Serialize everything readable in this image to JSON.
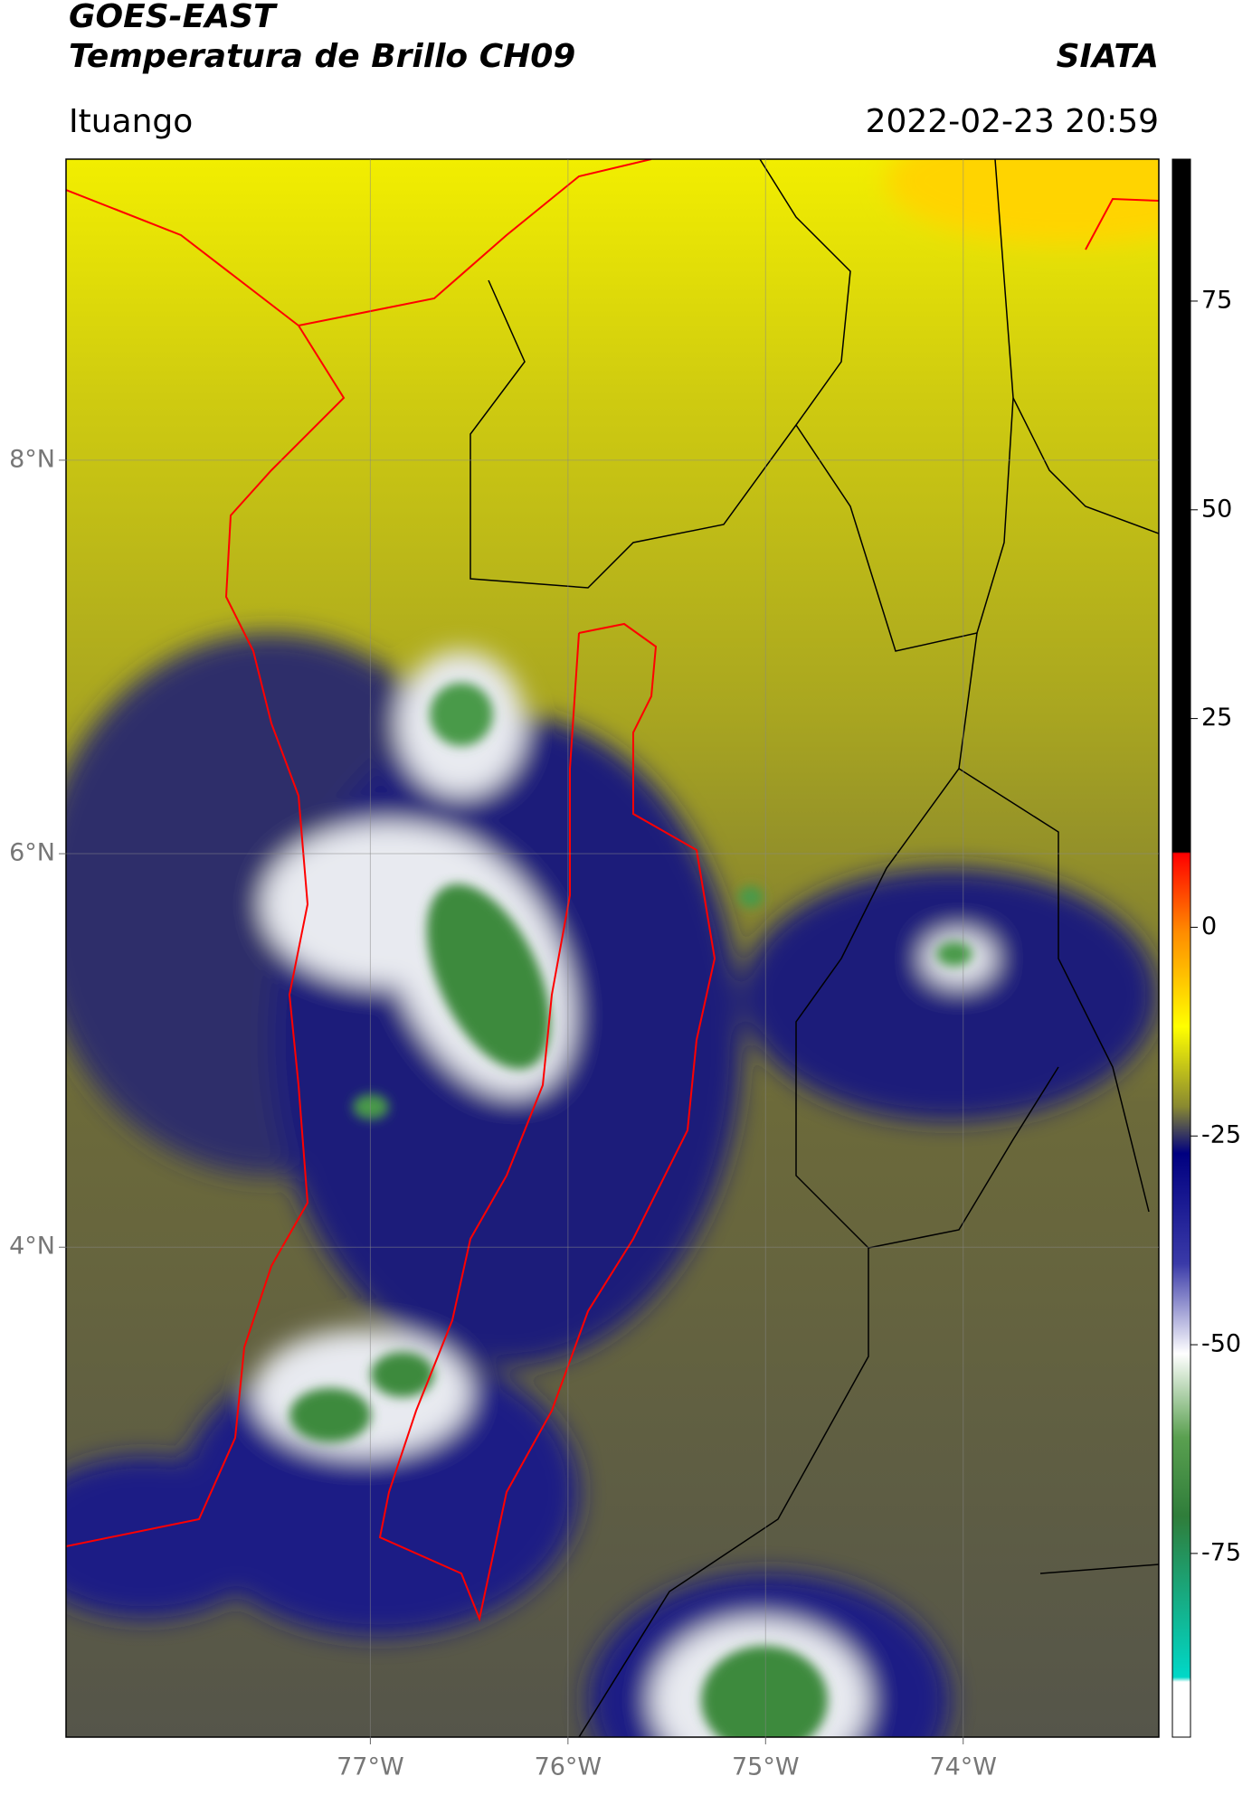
{
  "header": {
    "title": "GOES-EAST",
    "subtitle": "Temperatura de Brillo CH09",
    "brand": "SIATA",
    "location": "Ituango",
    "datetime": "2022-02-23 20:59"
  },
  "map": {
    "xlim": [
      -78.54,
      -73.01
    ],
    "ylim": [
      1.51,
      9.53
    ],
    "xticks": [
      {
        "value": -77,
        "label": "77°W"
      },
      {
        "value": -76,
        "label": "76°W"
      },
      {
        "value": -75,
        "label": "75°W"
      },
      {
        "value": -74,
        "label": "74°W"
      }
    ],
    "yticks": [
      {
        "value": 8,
        "label": "8°N"
      },
      {
        "value": 6,
        "label": "6°N"
      },
      {
        "value": 4,
        "label": "4°N"
      }
    ]
  },
  "colorbar": {
    "lim": [
      -97,
      92
    ],
    "ticks": [
      75,
      50,
      25,
      0,
      -25,
      -50,
      -75
    ]
  }
}
